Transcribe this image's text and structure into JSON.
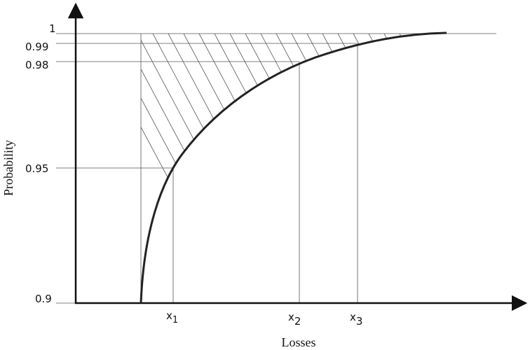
{
  "axes": {
    "x_label": "Losses",
    "y_label": "Probability"
  },
  "y_ticks": [
    "1",
    "0.99",
    "0.98",
    "0.95",
    "0.9"
  ],
  "x_markers": [
    {
      "base": "x",
      "sub": "1"
    },
    {
      "base": "x",
      "sub": "2"
    },
    {
      "base": "x",
      "sub": "3"
    }
  ]
}
